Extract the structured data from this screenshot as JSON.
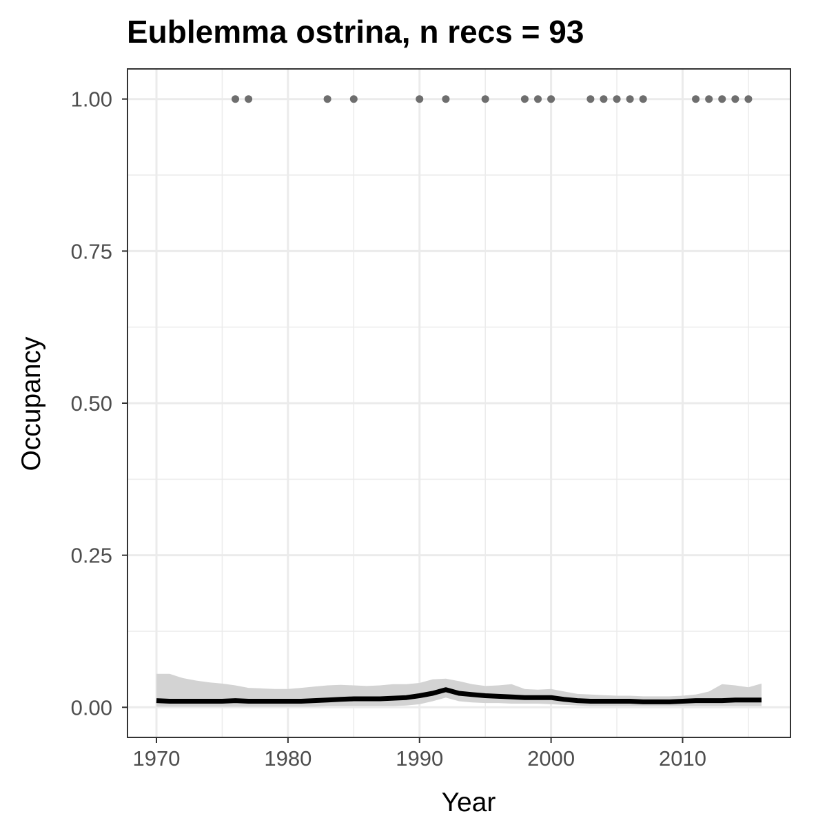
{
  "chart_data": {
    "type": "line",
    "title": "Eublemma ostrina, n recs = 93",
    "xlabel": "Year",
    "ylabel": "Occupancy",
    "xlim": [
      1967.8,
      2018.2
    ],
    "ylim": [
      -0.0495,
      1.0495
    ],
    "x_ticks": [
      1970,
      1980,
      1990,
      2000,
      2010
    ],
    "x_tick_labels": [
      "1970",
      "1980",
      "1990",
      "2000",
      "2010"
    ],
    "x_minor_ticks": [
      1975,
      1985,
      1995,
      2005,
      2015
    ],
    "y_ticks": [
      0,
      0.25,
      0.5,
      0.75,
      1.0
    ],
    "y_tick_labels": [
      "0.00",
      "0.25",
      "0.50",
      "0.75",
      "1.00"
    ],
    "y_minor_ticks": [
      0.125,
      0.375,
      0.625,
      0.875
    ],
    "grid": true,
    "legend": "none",
    "colors": {
      "line": "#000000",
      "ribbon": "#d3d3d3",
      "points": "#6e6e6e",
      "grid": "#ebebeb",
      "panel_border": "#333333"
    },
    "series": [
      {
        "x": [
          1970,
          1971,
          1972,
          1973,
          1974,
          1975,
          1976,
          1977,
          1978,
          1979,
          1980,
          1981,
          1982,
          1983,
          1984,
          1985,
          1986,
          1987,
          1988,
          1989,
          1990,
          1991,
          1992,
          1993,
          1994,
          1995,
          1996,
          1997,
          1998,
          1999,
          2000,
          2001,
          2002,
          2003,
          2004,
          2005,
          2006,
          2007,
          2008,
          2009,
          2010,
          2011,
          2012,
          2013,
          2014,
          2015,
          2016
        ],
        "y": [
          0.011,
          0.01,
          0.01,
          0.01,
          0.01,
          0.01,
          0.011,
          0.01,
          0.01,
          0.01,
          0.01,
          0.01,
          0.011,
          0.012,
          0.013,
          0.014,
          0.014,
          0.014,
          0.015,
          0.016,
          0.019,
          0.023,
          0.029,
          0.023,
          0.021,
          0.019,
          0.018,
          0.017,
          0.016,
          0.016,
          0.016,
          0.013,
          0.011,
          0.01,
          0.01,
          0.01,
          0.01,
          0.009,
          0.009,
          0.009,
          0.01,
          0.011,
          0.011,
          0.011,
          0.012,
          0.012,
          0.012
        ],
        "lower": [
          0.001,
          0.001,
          0.001,
          0.001,
          0.001,
          0.001,
          0.001,
          0.001,
          0.001,
          0.001,
          0.001,
          0.001,
          0.001,
          0.002,
          0.002,
          0.002,
          0.002,
          0.002,
          0.002,
          0.003,
          0.005,
          0.01,
          0.016,
          0.01,
          0.008,
          0.007,
          0.007,
          0.006,
          0.006,
          0.006,
          0.005,
          0.004,
          0.003,
          0.002,
          0.002,
          0.002,
          0.002,
          0.002,
          0.002,
          0.002,
          0.002,
          0.002,
          0.002,
          0.002,
          0.002,
          0.002,
          0.002
        ],
        "upper": [
          0.055,
          0.055,
          0.048,
          0.044,
          0.041,
          0.039,
          0.036,
          0.032,
          0.031,
          0.03,
          0.03,
          0.032,
          0.034,
          0.036,
          0.037,
          0.036,
          0.035,
          0.036,
          0.038,
          0.038,
          0.04,
          0.046,
          0.047,
          0.043,
          0.038,
          0.035,
          0.036,
          0.038,
          0.03,
          0.029,
          0.03,
          0.026,
          0.022,
          0.021,
          0.02,
          0.019,
          0.019,
          0.018,
          0.018,
          0.018,
          0.019,
          0.021,
          0.026,
          0.038,
          0.036,
          0.033,
          0.039
        ]
      }
    ],
    "record_points": {
      "x": [
        1976,
        1977,
        1983,
        1985,
        1990,
        1992,
        1995,
        1998,
        1999,
        2000,
        2003,
        2004,
        2005,
        2006,
        2007,
        2011,
        2012,
        2013,
        2014,
        2015
      ],
      "y": [
        1,
        1,
        1,
        1,
        1,
        1,
        1,
        1,
        1,
        1,
        1,
        1,
        1,
        1,
        1,
        1,
        1,
        1,
        1,
        1
      ]
    }
  }
}
